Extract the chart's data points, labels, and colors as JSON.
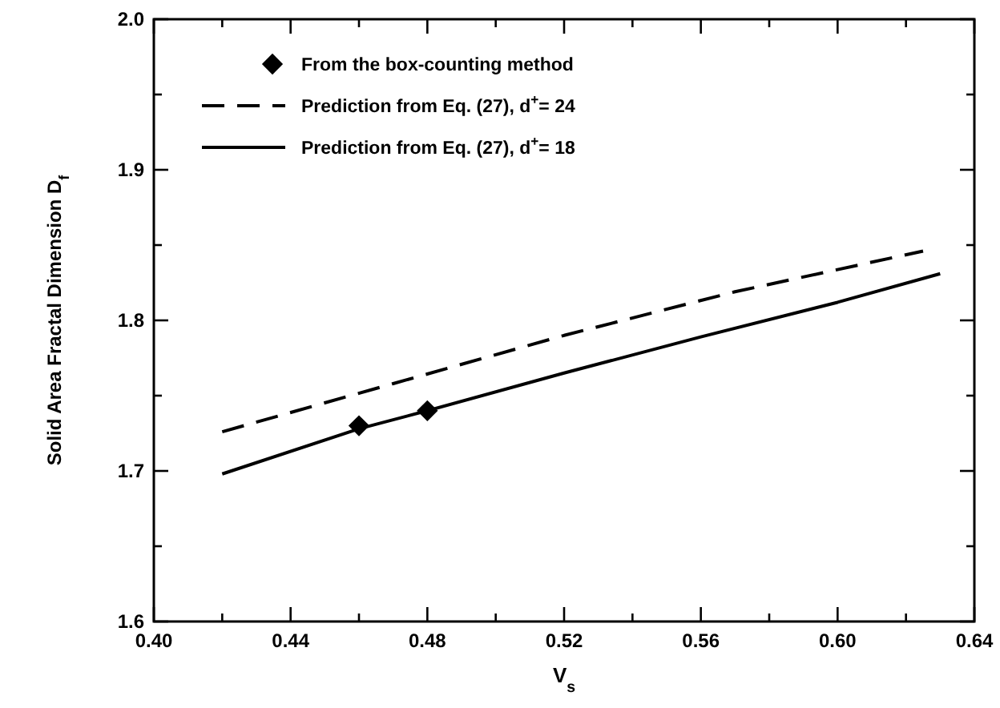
{
  "chart_data": {
    "type": "line",
    "xlabel": "V$_{s}$",
    "ylabel": "Solid Area Fractal Dimension D$_{f}$",
    "xlim": [
      0.4,
      0.64
    ],
    "ylim": [
      1.6,
      2.0
    ],
    "xticks": [
      {
        "value": 0.4,
        "label": "0.40"
      },
      {
        "value": 0.42,
        "label": null
      },
      {
        "value": 0.44,
        "label": "0.44"
      },
      {
        "value": 0.46,
        "label": null
      },
      {
        "value": 0.48,
        "label": "0.48"
      },
      {
        "value": 0.5,
        "label": null
      },
      {
        "value": 0.52,
        "label": "0.52"
      },
      {
        "value": 0.54,
        "label": null
      },
      {
        "value": 0.56,
        "label": "0.56"
      },
      {
        "value": 0.58,
        "label": null
      },
      {
        "value": 0.6,
        "label": "0.60"
      },
      {
        "value": 0.62,
        "label": null
      },
      {
        "value": 0.64,
        "label": "0.64"
      }
    ],
    "yticks": [
      {
        "value": 1.6,
        "label": "1.6"
      },
      {
        "value": 1.65,
        "label": null
      },
      {
        "value": 1.7,
        "label": "1.7"
      },
      {
        "value": 1.75,
        "label": null
      },
      {
        "value": 1.8,
        "label": "1.8"
      },
      {
        "value": 1.85,
        "label": null
      },
      {
        "value": 1.9,
        "label": "1.9"
      },
      {
        "value": 1.95,
        "label": null
      },
      {
        "value": 2.0,
        "label": "2.0"
      }
    ],
    "grid": false,
    "legend": "top left",
    "series": [
      {
        "name": "From the box-counting method",
        "type": "scatter",
        "marker": "diamond",
        "color": "#000000",
        "x": [
          0.46,
          0.48
        ],
        "values": [
          1.73,
          1.74
        ]
      },
      {
        "name": "Prediction from Eq. (27), d$^{+}$= 24",
        "type": "line",
        "line_style": "dashed",
        "marker": "none",
        "color": "#000000",
        "x": [
          0.42,
          0.47,
          0.52,
          0.57,
          0.625
        ],
        "values": [
          1.726,
          1.758,
          1.79,
          1.819,
          1.846
        ]
      },
      {
        "name": "Prediction from Eq. (27), d$^{+}$= 18",
        "type": "line",
        "line_style": "solid",
        "marker": "none",
        "color": "#000000",
        "x": [
          0.42,
          0.46,
          0.48,
          0.52,
          0.56,
          0.6,
          0.63
        ],
        "values": [
          1.698,
          1.728,
          1.74,
          1.765,
          1.789,
          1.812,
          1.831
        ]
      }
    ]
  }
}
